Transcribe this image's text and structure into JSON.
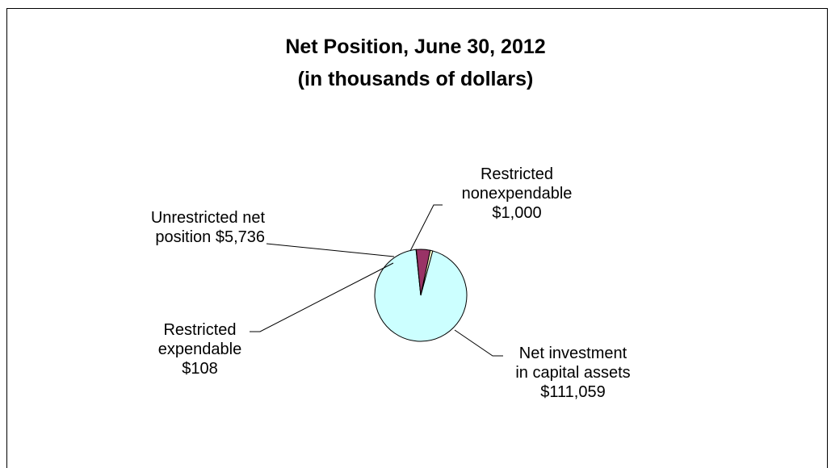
{
  "chart_data": {
    "type": "pie",
    "title": [
      "Net Position, June 30, 2012",
      "(in thousands of dollars)"
    ],
    "slices": [
      {
        "name": "Net investment",
        "name2": "in capital assets",
        "value_label": "$111,059",
        "value": 111059,
        "color": "#ccffff"
      },
      {
        "name": "Restricted",
        "name2": "expendable",
        "value_label": "$108",
        "value": 108,
        "color": "#cce8e8"
      },
      {
        "name": "Unrestricted net",
        "name2": "position $5,736",
        "value_label": "",
        "value": 5736,
        "color": "#993366"
      },
      {
        "name": "Restricted",
        "name2": "nonexpendable",
        "value_label": "$1,000",
        "value": 1000,
        "color": "#ffffcc"
      }
    ],
    "legend": "none",
    "grid": false
  }
}
